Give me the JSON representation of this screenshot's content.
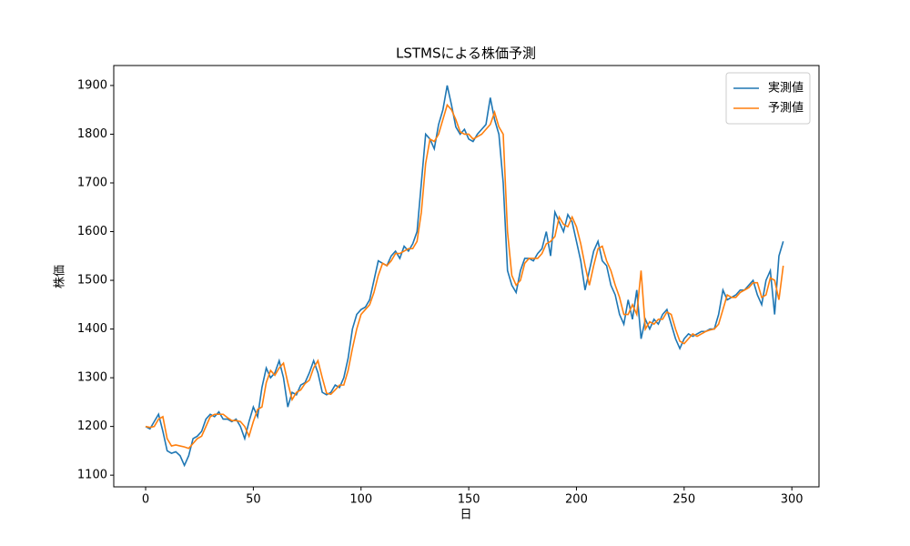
{
  "chart_data": {
    "type": "line",
    "title": "LSTMSによる株価予測",
    "x_label": "日",
    "y_label": "株価",
    "x": [
      0,
      2,
      4,
      6,
      8,
      10,
      12,
      14,
      16,
      18,
      20,
      22,
      24,
      26,
      28,
      30,
      32,
      34,
      36,
      38,
      40,
      42,
      44,
      46,
      48,
      50,
      52,
      54,
      56,
      58,
      60,
      62,
      64,
      66,
      68,
      70,
      72,
      74,
      76,
      78,
      80,
      82,
      84,
      86,
      88,
      90,
      92,
      94,
      96,
      98,
      100,
      102,
      104,
      106,
      108,
      110,
      112,
      114,
      116,
      118,
      120,
      122,
      124,
      126,
      128,
      130,
      132,
      134,
      136,
      138,
      140,
      142,
      144,
      146,
      148,
      150,
      152,
      154,
      156,
      158,
      160,
      162,
      164,
      166,
      168,
      170,
      172,
      174,
      176,
      178,
      180,
      182,
      184,
      186,
      188,
      190,
      192,
      194,
      196,
      198,
      200,
      202,
      204,
      206,
      208,
      210,
      212,
      214,
      216,
      218,
      220,
      222,
      224,
      226,
      228,
      230,
      232,
      234,
      236,
      238,
      240,
      242,
      244,
      246,
      248,
      250,
      252,
      254,
      256,
      258,
      260,
      262,
      264,
      266,
      268,
      270,
      272,
      274,
      276,
      278,
      280,
      282,
      284,
      286,
      288,
      290,
      292,
      294,
      296
    ],
    "series": [
      {
        "name": "実測値",
        "color": "#1f77b4",
        "values": [
          1200,
          1195,
          1210,
          1225,
          1190,
          1150,
          1145,
          1148,
          1140,
          1120,
          1140,
          1175,
          1180,
          1190,
          1215,
          1225,
          1220,
          1230,
          1215,
          1215,
          1210,
          1215,
          1200,
          1175,
          1210,
          1240,
          1220,
          1280,
          1320,
          1300,
          1310,
          1335,
          1300,
          1240,
          1270,
          1265,
          1285,
          1290,
          1310,
          1335,
          1310,
          1270,
          1265,
          1270,
          1285,
          1280,
          1300,
          1340,
          1400,
          1430,
          1440,
          1445,
          1460,
          1500,
          1540,
          1535,
          1530,
          1550,
          1560,
          1545,
          1570,
          1560,
          1575,
          1600,
          1700,
          1800,
          1790,
          1770,
          1820,
          1850,
          1900,
          1860,
          1815,
          1800,
          1810,
          1790,
          1785,
          1800,
          1810,
          1820,
          1875,
          1830,
          1800,
          1700,
          1520,
          1490,
          1475,
          1520,
          1545,
          1545,
          1540,
          1555,
          1565,
          1600,
          1550,
          1640,
          1620,
          1600,
          1635,
          1620,
          1580,
          1540,
          1480,
          1520,
          1560,
          1580,
          1540,
          1530,
          1490,
          1470,
          1430,
          1410,
          1460,
          1420,
          1480,
          1380,
          1420,
          1400,
          1420,
          1410,
          1430,
          1440,
          1410,
          1380,
          1360,
          1380,
          1390,
          1385,
          1390,
          1395,
          1395,
          1400,
          1400,
          1430,
          1480,
          1460,
          1465,
          1470,
          1480,
          1480,
          1490,
          1500,
          1470,
          1450,
          1500,
          1520,
          1430,
          1550,
          1580
        ]
      },
      {
        "name": "予測値",
        "color": "#ff7f0e",
        "values": [
          1200,
          1198,
          1200,
          1215,
          1220,
          1175,
          1160,
          1162,
          1160,
          1158,
          1155,
          1165,
          1175,
          1180,
          1200,
          1220,
          1225,
          1225,
          1225,
          1218,
          1212,
          1212,
          1210,
          1200,
          1180,
          1210,
          1235,
          1240,
          1290,
          1315,
          1305,
          1320,
          1330,
          1290,
          1255,
          1270,
          1275,
          1288,
          1295,
          1320,
          1335,
          1300,
          1268,
          1266,
          1275,
          1285,
          1285,
          1315,
          1360,
          1400,
          1430,
          1440,
          1450,
          1475,
          1510,
          1535,
          1530,
          1540,
          1555,
          1555,
          1560,
          1565,
          1565,
          1580,
          1640,
          1740,
          1790,
          1785,
          1800,
          1830,
          1860,
          1850,
          1830,
          1805,
          1800,
          1800,
          1790,
          1795,
          1800,
          1810,
          1820,
          1845,
          1815,
          1800,
          1600,
          1510,
          1490,
          1500,
          1535,
          1545,
          1545,
          1545,
          1555,
          1575,
          1580,
          1590,
          1630,
          1615,
          1610,
          1630,
          1610,
          1575,
          1530,
          1490,
          1530,
          1565,
          1570,
          1540,
          1520,
          1490,
          1465,
          1430,
          1430,
          1450,
          1430,
          1520,
          1400,
          1415,
          1410,
          1420,
          1420,
          1435,
          1430,
          1400,
          1375,
          1370,
          1380,
          1390,
          1385,
          1390,
          1395,
          1398,
          1400,
          1410,
          1440,
          1470,
          1465,
          1465,
          1475,
          1480,
          1485,
          1495,
          1495,
          1465,
          1470,
          1505,
          1500,
          1460,
          1530
        ]
      }
    ],
    "xlim": [
      -14.8,
      312.6
    ],
    "ylim": [
      1076,
      1941
    ],
    "xticks": [
      0,
      50,
      100,
      150,
      200,
      250,
      300
    ],
    "yticks": [
      1100,
      1200,
      1300,
      1400,
      1500,
      1600,
      1700,
      1800,
      1900
    ],
    "grid": false,
    "legend": "upper right"
  }
}
